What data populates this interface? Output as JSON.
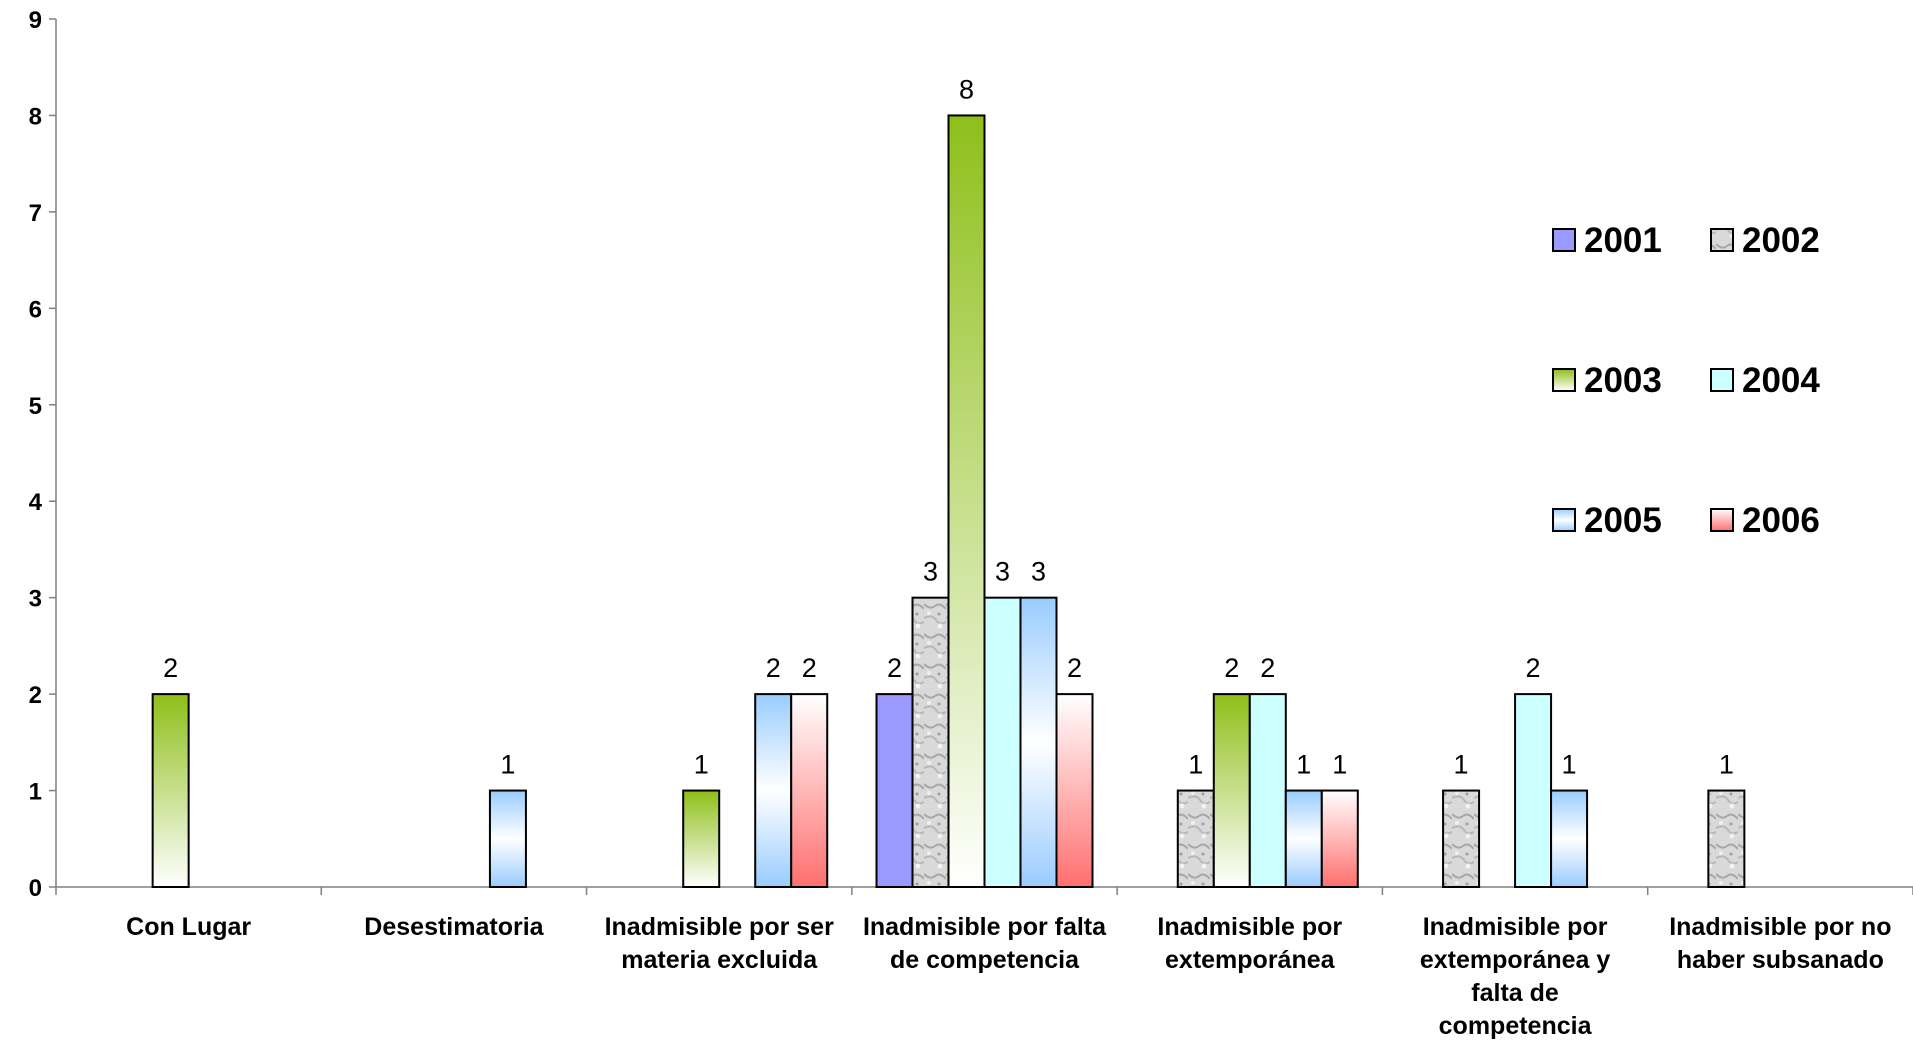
{
  "chart_data": {
    "type": "bar",
    "categories": [
      "Con Lugar",
      "Desestimatoria",
      "Inadmisible por ser materia excluida",
      "Inadmisible por falta de competencia",
      "Inadmisible por extemporánea",
      "Inadmisible por extemporánea y falta de competencia",
      "Inadmisible por no haber subsanado"
    ],
    "category_label_lines": [
      [
        "Con Lugar"
      ],
      [
        "Desestimatoria"
      ],
      [
        "Inadmisible por ser",
        "materia excluida"
      ],
      [
        "Inadmisible por falta",
        "de competencia"
      ],
      [
        "Inadmisible por",
        "extemporánea"
      ],
      [
        "Inadmisible por",
        "extemporánea y",
        "falta de",
        "competencia"
      ],
      [
        "Inadmisible por no",
        "haber subsanado"
      ]
    ],
    "series": [
      {
        "name": "2001",
        "values": [
          0,
          0,
          0,
          2,
          0,
          0,
          0
        ],
        "color": "#9999ff",
        "fill": "solid"
      },
      {
        "name": "2002",
        "values": [
          0,
          0,
          0,
          3,
          1,
          1,
          1
        ],
        "color": "#c0c0c0",
        "fill": "marble"
      },
      {
        "name": "2003",
        "values": [
          2,
          0,
          1,
          8,
          2,
          0,
          0
        ],
        "color": "#8ebf1a",
        "fill": "green-fade"
      },
      {
        "name": "2004",
        "values": [
          0,
          0,
          0,
          3,
          2,
          2,
          0
        ],
        "color": "#ccffff",
        "fill": "cyan"
      },
      {
        "name": "2005",
        "values": [
          0,
          1,
          2,
          3,
          1,
          1,
          0
        ],
        "color": "#99ccff",
        "fill": "blue-fade"
      },
      {
        "name": "2006",
        "values": [
          0,
          0,
          2,
          2,
          1,
          0,
          0
        ],
        "color": "#ff7777",
        "fill": "red-fade"
      }
    ],
    "y_ticks": [
      "0",
      "1",
      "2",
      "3",
      "4",
      "5",
      "6",
      "7",
      "8",
      "9"
    ],
    "ylim": [
      0,
      9
    ],
    "grid": false,
    "legend_position": "right",
    "title": "",
    "xlabel": "",
    "ylabel": ""
  }
}
